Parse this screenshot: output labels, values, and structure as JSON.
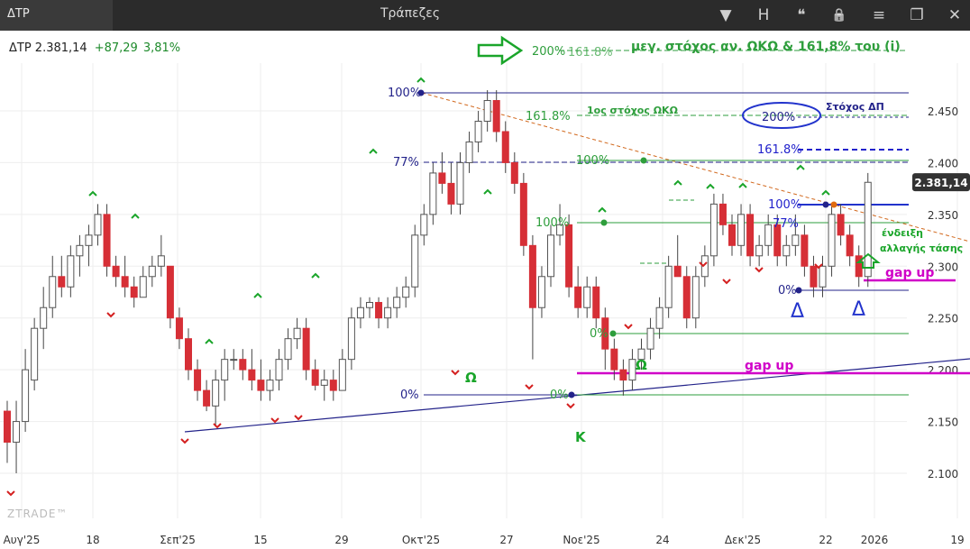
{
  "window": {
    "tab_label": "ΔΤΡ",
    "title": "Τράπεζες",
    "icons": [
      "chevron-down-icon",
      "h-icon",
      "quote-icon",
      "lock-icon",
      "menu-icon",
      "restore-icon",
      "close-icon"
    ],
    "icon_glyphs": [
      "▼",
      "H",
      "❝",
      "🔒",
      "≡",
      "❐",
      "✕"
    ],
    "icon_labels": [
      "dropdown",
      "H",
      "comments",
      "lock",
      "menu",
      "restore",
      "close"
    ]
  },
  "quote": {
    "symbol_value": "ΔΤΡ 2.381,14",
    "change": "+87,29",
    "change_pct": "3,81%"
  },
  "colors": {
    "up": "#ffffff",
    "down": "#d62f36",
    "wick": "#444444",
    "grid": "#eeeeee",
    "fib_green": "#2e9e3c",
    "fib_blue": "#23238a",
    "magenta": "#d000c8",
    "trend_orange": "#d2691e",
    "signal_green": "#1aa52a",
    "signal_red": "#d42020"
  },
  "chart_data": {
    "type": "candlestick",
    "title": "",
    "xlabel": "",
    "ylabel": "",
    "ylim": [
      2.06,
      2.52
    ],
    "y_ticks": [
      "2.100",
      "2.150",
      "2.200",
      "2.250",
      "2.300",
      "2.350",
      "2.400",
      "2.450"
    ],
    "x_ticks": [
      "Αυγ'25",
      "18",
      "Σεπ'25",
      "15",
      "29",
      "Οκτ'25",
      "27",
      "Νοε'25",
      "24",
      "Δεκ'25",
      "22",
      "2026",
      "19"
    ],
    "last_price_label": "2.381,14",
    "last_price": 2.38114,
    "watermark": "ZTRADE™",
    "candles": [
      {
        "i": 0,
        "o": 2.16,
        "h": 2.17,
        "l": 2.11,
        "c": 2.13
      },
      {
        "i": 1,
        "o": 2.13,
        "h": 2.17,
        "l": 2.1,
        "c": 2.15
      },
      {
        "i": 2,
        "o": 2.15,
        "h": 2.22,
        "l": 2.14,
        "c": 2.2
      },
      {
        "i": 3,
        "o": 2.19,
        "h": 2.25,
        "l": 2.18,
        "c": 2.24
      },
      {
        "i": 4,
        "o": 2.24,
        "h": 2.28,
        "l": 2.22,
        "c": 2.26
      },
      {
        "i": 5,
        "o": 2.26,
        "h": 2.31,
        "l": 2.25,
        "c": 2.29
      },
      {
        "i": 6,
        "o": 2.29,
        "h": 2.31,
        "l": 2.27,
        "c": 2.28
      },
      {
        "i": 7,
        "o": 2.28,
        "h": 2.32,
        "l": 2.27,
        "c": 2.31
      },
      {
        "i": 8,
        "o": 2.31,
        "h": 2.33,
        "l": 2.29,
        "c": 2.32
      },
      {
        "i": 9,
        "o": 2.32,
        "h": 2.34,
        "l": 2.3,
        "c": 2.33
      },
      {
        "i": 10,
        "o": 2.33,
        "h": 2.36,
        "l": 2.32,
        "c": 2.35
      },
      {
        "i": 11,
        "o": 2.35,
        "h": 2.36,
        "l": 2.29,
        "c": 2.3
      },
      {
        "i": 12,
        "o": 2.3,
        "h": 2.31,
        "l": 2.28,
        "c": 2.29
      },
      {
        "i": 13,
        "o": 2.29,
        "h": 2.31,
        "l": 2.27,
        "c": 2.28
      },
      {
        "i": 14,
        "o": 2.28,
        "h": 2.29,
        "l": 2.26,
        "c": 2.27
      },
      {
        "i": 15,
        "o": 2.27,
        "h": 2.3,
        "l": 2.27,
        "c": 2.29
      },
      {
        "i": 16,
        "o": 2.29,
        "h": 2.31,
        "l": 2.28,
        "c": 2.3
      },
      {
        "i": 17,
        "o": 2.3,
        "h": 2.33,
        "l": 2.29,
        "c": 2.31
      },
      {
        "i": 18,
        "o": 2.3,
        "h": 2.3,
        "l": 2.24,
        "c": 2.25
      },
      {
        "i": 19,
        "o": 2.25,
        "h": 2.26,
        "l": 2.22,
        "c": 2.23
      },
      {
        "i": 20,
        "o": 2.23,
        "h": 2.24,
        "l": 2.19,
        "c": 2.2
      },
      {
        "i": 21,
        "o": 2.2,
        "h": 2.21,
        "l": 2.17,
        "c": 2.18
      },
      {
        "i": 22,
        "o": 2.18,
        "h": 2.19,
        "l": 2.16,
        "c": 2.165
      },
      {
        "i": 23,
        "o": 2.165,
        "h": 2.2,
        "l": 2.145,
        "c": 2.19
      },
      {
        "i": 24,
        "o": 2.19,
        "h": 2.22,
        "l": 2.17,
        "c": 2.21
      },
      {
        "i": 25,
        "o": 2.21,
        "h": 2.22,
        "l": 2.2,
        "c": 2.21
      },
      {
        "i": 26,
        "o": 2.21,
        "h": 2.22,
        "l": 2.19,
        "c": 2.2
      },
      {
        "i": 27,
        "o": 2.2,
        "h": 2.22,
        "l": 2.18,
        "c": 2.19
      },
      {
        "i": 28,
        "o": 2.19,
        "h": 2.21,
        "l": 2.17,
        "c": 2.18
      },
      {
        "i": 29,
        "o": 2.18,
        "h": 2.2,
        "l": 2.17,
        "c": 2.19
      },
      {
        "i": 30,
        "o": 2.19,
        "h": 2.22,
        "l": 2.18,
        "c": 2.21
      },
      {
        "i": 31,
        "o": 2.21,
        "h": 2.24,
        "l": 2.2,
        "c": 2.23
      },
      {
        "i": 32,
        "o": 2.23,
        "h": 2.25,
        "l": 2.22,
        "c": 2.24
      },
      {
        "i": 33,
        "o": 2.24,
        "h": 2.25,
        "l": 2.19,
        "c": 2.2
      },
      {
        "i": 34,
        "o": 2.2,
        "h": 2.21,
        "l": 2.18,
        "c": 2.185
      },
      {
        "i": 35,
        "o": 2.185,
        "h": 2.2,
        "l": 2.17,
        "c": 2.19
      },
      {
        "i": 36,
        "o": 2.19,
        "h": 2.2,
        "l": 2.17,
        "c": 2.18
      },
      {
        "i": 37,
        "o": 2.18,
        "h": 2.22,
        "l": 2.18,
        "c": 2.21
      },
      {
        "i": 38,
        "o": 2.21,
        "h": 2.26,
        "l": 2.2,
        "c": 2.25
      },
      {
        "i": 39,
        "o": 2.25,
        "h": 2.27,
        "l": 2.24,
        "c": 2.26
      },
      {
        "i": 40,
        "o": 2.26,
        "h": 2.27,
        "l": 2.25,
        "c": 2.265
      },
      {
        "i": 41,
        "o": 2.265,
        "h": 2.27,
        "l": 2.24,
        "c": 2.25
      },
      {
        "i": 42,
        "o": 2.25,
        "h": 2.27,
        "l": 2.24,
        "c": 2.26
      },
      {
        "i": 43,
        "o": 2.26,
        "h": 2.28,
        "l": 2.25,
        "c": 2.27
      },
      {
        "i": 44,
        "o": 2.27,
        "h": 2.29,
        "l": 2.26,
        "c": 2.28
      },
      {
        "i": 45,
        "o": 2.28,
        "h": 2.34,
        "l": 2.27,
        "c": 2.33
      },
      {
        "i": 46,
        "o": 2.33,
        "h": 2.36,
        "l": 2.32,
        "c": 2.35
      },
      {
        "i": 47,
        "o": 2.35,
        "h": 2.4,
        "l": 2.34,
        "c": 2.39
      },
      {
        "i": 48,
        "o": 2.39,
        "h": 2.41,
        "l": 2.37,
        "c": 2.38
      },
      {
        "i": 49,
        "o": 2.38,
        "h": 2.4,
        "l": 2.35,
        "c": 2.36
      },
      {
        "i": 50,
        "o": 2.36,
        "h": 2.41,
        "l": 2.35,
        "c": 2.4
      },
      {
        "i": 51,
        "o": 2.4,
        "h": 2.43,
        "l": 2.39,
        "c": 2.42
      },
      {
        "i": 52,
        "o": 2.42,
        "h": 2.45,
        "l": 2.41,
        "c": 2.44
      },
      {
        "i": 53,
        "o": 2.44,
        "h": 2.47,
        "l": 2.43,
        "c": 2.46
      },
      {
        "i": 54,
        "o": 2.46,
        "h": 2.47,
        "l": 2.42,
        "c": 2.43
      },
      {
        "i": 55,
        "o": 2.43,
        "h": 2.44,
        "l": 2.39,
        "c": 2.4
      },
      {
        "i": 56,
        "o": 2.4,
        "h": 2.41,
        "l": 2.37,
        "c": 2.38
      },
      {
        "i": 57,
        "o": 2.38,
        "h": 2.39,
        "l": 2.31,
        "c": 2.32
      },
      {
        "i": 58,
        "o": 2.32,
        "h": 2.33,
        "l": 2.21,
        "c": 2.26
      },
      {
        "i": 59,
        "o": 2.26,
        "h": 2.3,
        "l": 2.25,
        "c": 2.29
      },
      {
        "i": 60,
        "o": 2.29,
        "h": 2.34,
        "l": 2.28,
        "c": 2.33
      },
      {
        "i": 61,
        "o": 2.33,
        "h": 2.36,
        "l": 2.32,
        "c": 2.34
      },
      {
        "i": 62,
        "o": 2.34,
        "h": 2.35,
        "l": 2.27,
        "c": 2.28
      },
      {
        "i": 63,
        "o": 2.28,
        "h": 2.3,
        "l": 2.25,
        "c": 2.26
      },
      {
        "i": 64,
        "o": 2.26,
        "h": 2.29,
        "l": 2.25,
        "c": 2.28
      },
      {
        "i": 65,
        "o": 2.28,
        "h": 2.29,
        "l": 2.24,
        "c": 2.25
      },
      {
        "i": 66,
        "o": 2.25,
        "h": 2.26,
        "l": 2.2,
        "c": 2.22
      },
      {
        "i": 67,
        "o": 2.22,
        "h": 2.23,
        "l": 2.19,
        "c": 2.2
      },
      {
        "i": 68,
        "o": 2.2,
        "h": 2.21,
        "l": 2.175,
        "c": 2.19
      },
      {
        "i": 69,
        "o": 2.19,
        "h": 2.22,
        "l": 2.18,
        "c": 2.21
      },
      {
        "i": 70,
        "o": 2.21,
        "h": 2.23,
        "l": 2.2,
        "c": 2.22
      },
      {
        "i": 71,
        "o": 2.22,
        "h": 2.25,
        "l": 2.21,
        "c": 2.24
      },
      {
        "i": 72,
        "o": 2.24,
        "h": 2.27,
        "l": 2.23,
        "c": 2.26
      },
      {
        "i": 73,
        "o": 2.26,
        "h": 2.31,
        "l": 2.25,
        "c": 2.3
      },
      {
        "i": 74,
        "o": 2.3,
        "h": 2.33,
        "l": 2.29,
        "c": 2.29
      },
      {
        "i": 75,
        "o": 2.29,
        "h": 2.3,
        "l": 2.24,
        "c": 2.25
      },
      {
        "i": 76,
        "o": 2.25,
        "h": 2.3,
        "l": 2.24,
        "c": 2.29
      },
      {
        "i": 77,
        "o": 2.29,
        "h": 2.32,
        "l": 2.28,
        "c": 2.31
      },
      {
        "i": 78,
        "o": 2.31,
        "h": 2.37,
        "l": 2.3,
        "c": 2.36
      },
      {
        "i": 79,
        "o": 2.36,
        "h": 2.37,
        "l": 2.33,
        "c": 2.34
      },
      {
        "i": 80,
        "o": 2.34,
        "h": 2.35,
        "l": 2.31,
        "c": 2.32
      },
      {
        "i": 81,
        "o": 2.32,
        "h": 2.36,
        "l": 2.31,
        "c": 2.35
      },
      {
        "i": 82,
        "o": 2.35,
        "h": 2.36,
        "l": 2.3,
        "c": 2.31
      },
      {
        "i": 83,
        "o": 2.31,
        "h": 2.33,
        "l": 2.3,
        "c": 2.32
      },
      {
        "i": 84,
        "o": 2.32,
        "h": 2.35,
        "l": 2.31,
        "c": 2.34
      },
      {
        "i": 85,
        "o": 2.34,
        "h": 2.35,
        "l": 2.3,
        "c": 2.31
      },
      {
        "i": 86,
        "o": 2.31,
        "h": 2.33,
        "l": 2.3,
        "c": 2.32
      },
      {
        "i": 87,
        "o": 2.32,
        "h": 2.35,
        "l": 2.31,
        "c": 2.33
      },
      {
        "i": 88,
        "o": 2.33,
        "h": 2.34,
        "l": 2.29,
        "c": 2.3
      },
      {
        "i": 89,
        "o": 2.3,
        "h": 2.31,
        "l": 2.27,
        "c": 2.28
      },
      {
        "i": 90,
        "o": 2.28,
        "h": 2.31,
        "l": 2.27,
        "c": 2.3
      },
      {
        "i": 91,
        "o": 2.3,
        "h": 2.36,
        "l": 2.29,
        "c": 2.35
      },
      {
        "i": 92,
        "o": 2.35,
        "h": 2.36,
        "l": 2.32,
        "c": 2.33
      },
      {
        "i": 93,
        "o": 2.33,
        "h": 2.34,
        "l": 2.3,
        "c": 2.31
      },
      {
        "i": 94,
        "o": 2.31,
        "h": 2.32,
        "l": 2.28,
        "c": 2.29
      },
      {
        "i": 95,
        "o": 2.29,
        "h": 2.39,
        "l": 2.28,
        "c": 2.381
      }
    ],
    "annotations": {
      "top_text": "μεγ. στόχος αν. ΩΚΩ  & 161,8% του (i)",
      "pct_200_top": "200%",
      "pct_1618_top": "161.8%",
      "target_label": "1ος στόχος ΩΚΩ",
      "pct_1618_left": "161.8%",
      "pct_200_oval": "200%",
      "target_dp": "Στόχος ΔΠ",
      "pct_1618_blue": "161.8%",
      "pct_100_top": "100%",
      "pct_77": "77%",
      "pct_100_green_mid": "100%",
      "pct_100_green_left": "100%",
      "pct_100_blue_right": "100%",
      "pct_77_right": "77%",
      "pct_0_blue_right": "0%",
      "pct_0_green": "0%",
      "pct_0_blue_bottom": "0%",
      "omega1": "Ω",
      "omega2": "Ω",
      "kappa": "Κ",
      "gap_up_1": "gap up",
      "gap_up_2": "gap up",
      "trend_change_1": "ένδειξη",
      "trend_change_2": "αλλαγής τάσης",
      "delta_1": "Δ",
      "delta_2": "Δ"
    }
  }
}
